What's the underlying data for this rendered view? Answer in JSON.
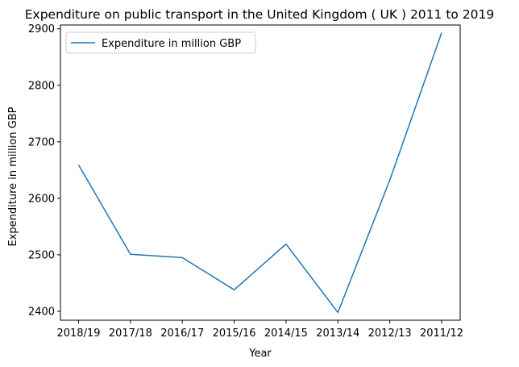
{
  "chart_data": {
    "type": "line",
    "title": "Expenditure on public transport in the United Kingdom ( UK ) 2011 to 2019",
    "xlabel": "Year",
    "ylabel": "Expenditure in million GBP",
    "categories": [
      "2018/19",
      "2017/18",
      "2016/17",
      "2015/16",
      "2014/15",
      "2013/14",
      "2012/13",
      "2011/12"
    ],
    "series": [
      {
        "name": "Expenditure in million GBP",
        "values": [
          2659,
          2501,
          2495,
          2438,
          2519,
          2398,
          2632,
          2893
        ],
        "color": "#1f77b4"
      }
    ],
    "ylim": [
      2384.25,
      2906.75
    ],
    "yticks": [
      2400,
      2500,
      2600,
      2700,
      2800,
      2900
    ],
    "grid": false,
    "legend_position": "upper-left"
  }
}
